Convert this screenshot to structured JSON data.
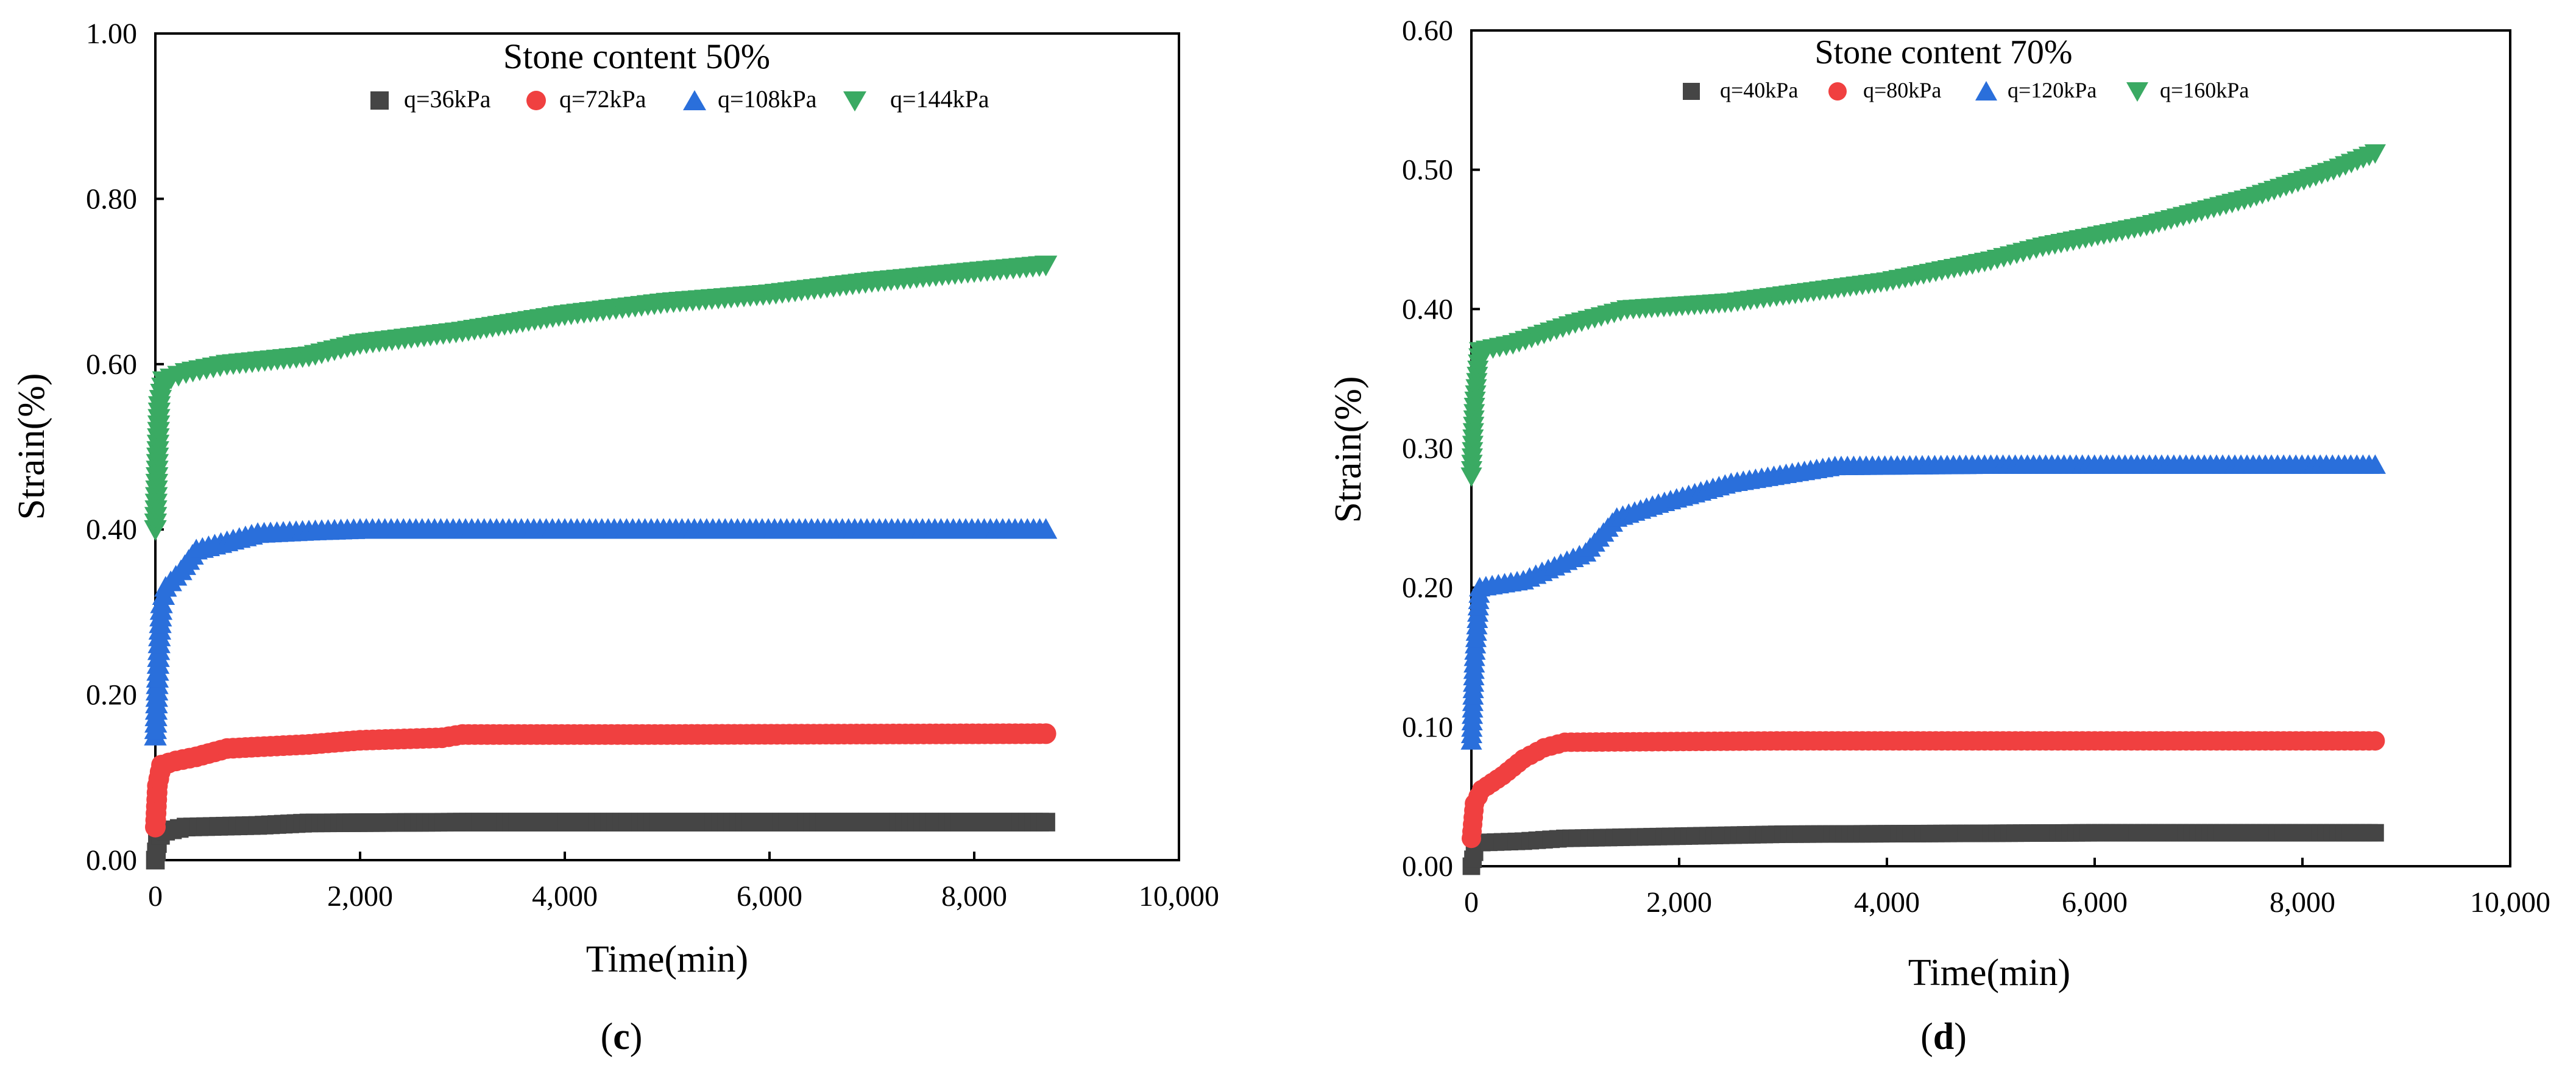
{
  "colors": {
    "q1": "#454545",
    "q2": "#f04040",
    "q3": "#2a6fdb",
    "q4": "#3aaa63",
    "axis": "#000000",
    "background": "#ffffff"
  },
  "chart_data": [
    {
      "panel_label": "(c)",
      "panel_letter": "c",
      "type": "scatter",
      "title": "Stone content 50%",
      "xlabel": "Time(min)",
      "ylabel": "Strain(%)",
      "xlim": [
        0,
        10000
      ],
      "ylim": [
        0,
        1.0
      ],
      "xticks": [
        0,
        2000,
        4000,
        6000,
        8000,
        10000
      ],
      "xtick_labels": [
        "0",
        "2,000",
        "4,000",
        "6,000",
        "8,000",
        "10,000"
      ],
      "yticks": [
        0,
        0.2,
        0.4,
        0.6,
        0.8,
        1.0
      ],
      "ytick_labels": [
        "0.00",
        "0.20",
        "0.40",
        "0.60",
        "0.80",
        "1.00"
      ],
      "legend_position": "top-center",
      "series": [
        {
          "name": "q=36kPa",
          "marker": "square",
          "color_key": "q1",
          "points": [
            [
              0,
              0.0
            ],
            [
              20,
              0.02
            ],
            [
              50,
              0.03
            ],
            [
              100,
              0.035
            ],
            [
              300,
              0.04
            ],
            [
              1000,
              0.042
            ],
            [
              1500,
              0.045
            ],
            [
              3000,
              0.046
            ],
            [
              6000,
              0.046
            ],
            [
              8700,
              0.046
            ]
          ]
        },
        {
          "name": "q=72kPa",
          "marker": "circle",
          "color_key": "q2",
          "points": [
            [
              0,
              0.04
            ],
            [
              20,
              0.09
            ],
            [
              60,
              0.115
            ],
            [
              200,
              0.12
            ],
            [
              400,
              0.125
            ],
            [
              700,
              0.135
            ],
            [
              1000,
              0.137
            ],
            [
              1500,
              0.14
            ],
            [
              2000,
              0.145
            ],
            [
              2800,
              0.148
            ],
            [
              3000,
              0.152
            ],
            [
              5000,
              0.152
            ],
            [
              8700,
              0.153
            ]
          ]
        },
        {
          "name": "q=108kPa",
          "marker": "triangle-up",
          "color_key": "q3",
          "points": [
            [
              0,
              0.15
            ],
            [
              20,
              0.22
            ],
            [
              40,
              0.27
            ],
            [
              60,
              0.31
            ],
            [
              100,
              0.33
            ],
            [
              250,
              0.35
            ],
            [
              400,
              0.375
            ],
            [
              700,
              0.385
            ],
            [
              1000,
              0.395
            ],
            [
              1500,
              0.398
            ],
            [
              2000,
              0.4
            ],
            [
              4000,
              0.4
            ],
            [
              8700,
              0.4
            ]
          ]
        },
        {
          "name": "q=144kPa",
          "marker": "triangle-down",
          "color_key": "q4",
          "points": [
            [
              0,
              0.4
            ],
            [
              20,
              0.48
            ],
            [
              40,
              0.55
            ],
            [
              80,
              0.58
            ],
            [
              300,
              0.59
            ],
            [
              700,
              0.6
            ],
            [
              1500,
              0.61
            ],
            [
              2000,
              0.625
            ],
            [
              3000,
              0.64
            ],
            [
              4000,
              0.66
            ],
            [
              5000,
              0.675
            ],
            [
              6000,
              0.685
            ],
            [
              7000,
              0.7
            ],
            [
              8000,
              0.712
            ],
            [
              8700,
              0.72
            ]
          ]
        }
      ]
    },
    {
      "panel_label": "(d)",
      "panel_letter": "d",
      "type": "scatter",
      "title": "Stone content 70%",
      "xlabel": "Time(min)",
      "ylabel": "Strain(%)",
      "xlim": [
        0,
        10000
      ],
      "ylim": [
        0,
        0.6
      ],
      "xticks": [
        0,
        2000,
        4000,
        6000,
        8000,
        10000
      ],
      "xtick_labels": [
        "0",
        "2,000",
        "4,000",
        "6,000",
        "8,000",
        "10,000"
      ],
      "yticks": [
        0,
        0.1,
        0.2,
        0.3,
        0.4,
        0.5,
        0.6
      ],
      "ytick_labels": [
        "0.00",
        "0.10",
        "0.20",
        "0.30",
        "0.40",
        "0.50",
        "0.60"
      ],
      "legend_position": "top-center",
      "series": [
        {
          "name": "q=40kPa",
          "marker": "square",
          "color_key": "q1",
          "points": [
            [
              0,
              0.0
            ],
            [
              30,
              0.01
            ],
            [
              100,
              0.017
            ],
            [
              500,
              0.018
            ],
            [
              900,
              0.02
            ],
            [
              3000,
              0.023
            ],
            [
              6000,
              0.024
            ],
            [
              8700,
              0.024
            ]
          ]
        },
        {
          "name": "q=80kPa",
          "marker": "circle",
          "color_key": "q2",
          "points": [
            [
              0,
              0.02
            ],
            [
              30,
              0.045
            ],
            [
              100,
              0.055
            ],
            [
              300,
              0.065
            ],
            [
              500,
              0.077
            ],
            [
              700,
              0.085
            ],
            [
              900,
              0.089
            ],
            [
              3000,
              0.09
            ],
            [
              6000,
              0.09
            ],
            [
              8700,
              0.09
            ]
          ]
        },
        {
          "name": "q=120kPa",
          "marker": "triangle-up",
          "color_key": "q3",
          "points": [
            [
              0,
              0.09
            ],
            [
              30,
              0.15
            ],
            [
              80,
              0.2
            ],
            [
              500,
              0.205
            ],
            [
              800,
              0.215
            ],
            [
              1100,
              0.225
            ],
            [
              1400,
              0.25
            ],
            [
              1800,
              0.26
            ],
            [
              2500,
              0.275
            ],
            [
              3500,
              0.287
            ],
            [
              5000,
              0.288
            ],
            [
              8700,
              0.288
            ]
          ]
        },
        {
          "name": "q=160kPa",
          "marker": "triangle-down",
          "color_key": "q4",
          "points": [
            [
              0,
              0.28
            ],
            [
              30,
              0.33
            ],
            [
              80,
              0.37
            ],
            [
              400,
              0.375
            ],
            [
              1000,
              0.39
            ],
            [
              1500,
              0.4
            ],
            [
              2500,
              0.405
            ],
            [
              3000,
              0.41
            ],
            [
              4000,
              0.42
            ],
            [
              5000,
              0.435
            ],
            [
              5500,
              0.445
            ],
            [
              6500,
              0.46
            ],
            [
              7500,
              0.48
            ],
            [
              8300,
              0.5
            ],
            [
              8700,
              0.512
            ]
          ]
        }
      ]
    }
  ]
}
